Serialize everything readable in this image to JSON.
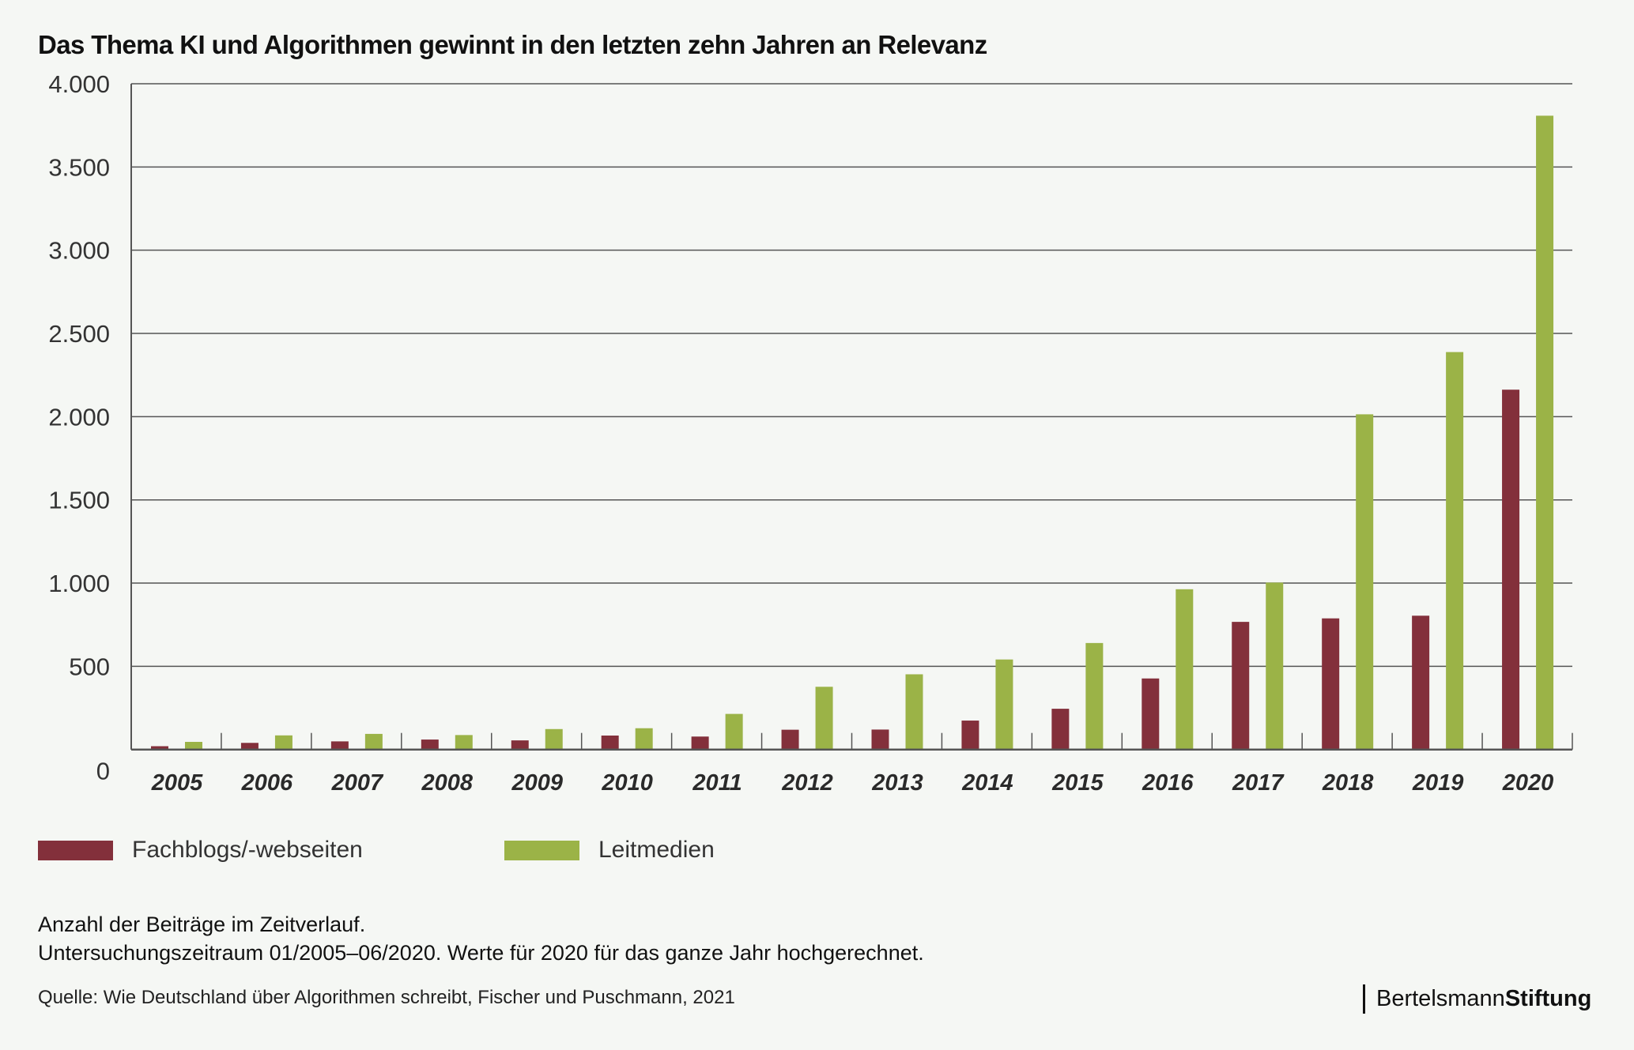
{
  "title": "Das Thema KI und Algorithmen gewinnt in den letzten zehn Jahren an Relevanz",
  "colors": {
    "background": "#f5f7f4",
    "fachblogs": "#83303b",
    "leitmedien": "#9bb347",
    "grid": "#555555"
  },
  "chart_data": {
    "type": "bar",
    "title": "Das Thema KI und Algorithmen gewinnt in den letzten zehn Jahren an Relevanz",
    "xlabel": "",
    "ylabel": "",
    "ylim": [
      0,
      4000
    ],
    "yticks": [
      0,
      500,
      1000,
      1500,
      2000,
      2500,
      3000,
      3500,
      4000
    ],
    "ytick_labels": [
      "0",
      "500",
      "1.000",
      "1.500",
      "2.000",
      "2.500",
      "3.000",
      "3.500",
      "4.000"
    ],
    "grid": true,
    "legend_position": "bottom-left",
    "categories": [
      "2005",
      "2006",
      "2007",
      "2008",
      "2009",
      "2010",
      "2011",
      "2012",
      "2013",
      "2014",
      "2015",
      "2016",
      "2017",
      "2018",
      "2019",
      "2020"
    ],
    "series": [
      {
        "name": "Fachblogs/-webseiten",
        "color": "#83303b",
        "values": [
          20,
          40,
          49,
          60,
          55,
          84,
          78,
          119,
          120,
          174,
          245,
          427,
          767,
          788,
          804,
          2162
        ]
      },
      {
        "name": "Leitmedien",
        "color": "#9bb347",
        "values": [
          46,
          85,
          94,
          87,
          123,
          128,
          214,
          377,
          452,
          541,
          640,
          963,
          1003,
          2014,
          2388,
          3808
        ]
      }
    ]
  },
  "legend": {
    "items": [
      {
        "label": "Fachblogs/-webseiten",
        "color": "#83303b"
      },
      {
        "label": "Leitmedien",
        "color": "#9bb347"
      }
    ]
  },
  "caption": {
    "line1": "Anzahl der Beiträge im Zeitverlauf.",
    "line2": "Untersuchungszeitraum 01/2005–06/2020. Werte für 2020 für das ganze Jahr hochgerechnet."
  },
  "source": "Quelle: Wie Deutschland über Algorithmen schreibt, Fischer und Puschmann, 2021",
  "logo": {
    "part1": "Bertelsmann",
    "part2": "Stiftung"
  }
}
